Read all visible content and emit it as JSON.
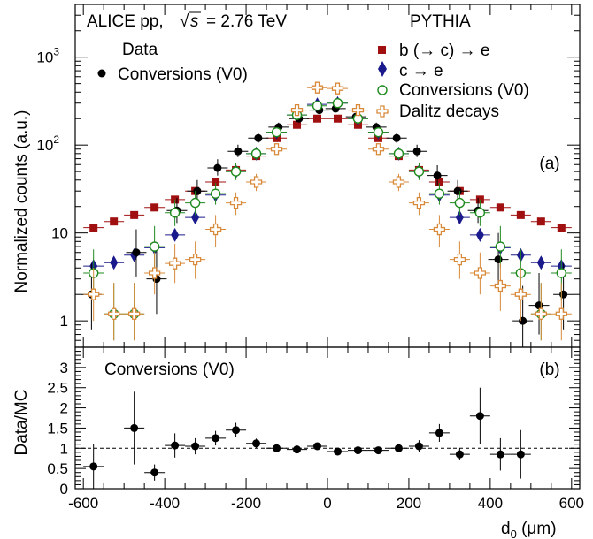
{
  "header": {
    "experiment": "ALICE pp,",
    "energy_sqrt": "s",
    "energy_value": "= 2.76 TeV"
  },
  "legend_data": {
    "title": "Data",
    "entries": [
      {
        "label": "Conversions (V0)",
        "marker": "filled-circle",
        "color": "#000000"
      }
    ]
  },
  "legend_mc": {
    "title": "PYTHIA",
    "entries": [
      {
        "label": "b (→ c) → e",
        "marker": "square",
        "color": "#a01010"
      },
      {
        "label": "c → e",
        "marker": "diamond",
        "color": "#1a1a8c"
      },
      {
        "label": "Conversions (V0)",
        "marker": "open-circle",
        "color": "#1e8a1e"
      },
      {
        "label": "Dalitz decays",
        "marker": "open-cross",
        "color": "#d88a3a"
      }
    ]
  },
  "panel_labels": {
    "top": "(a)",
    "bottom": "(b)"
  },
  "bottom_title": "Conversions (V0)",
  "chart_data": [
    {
      "type": "scatter",
      "panel": "top",
      "ylabel": "Normalized counts (a.u.)",
      "xlim": [
        -620,
        620
      ],
      "ylim_log10": [
        -0.3,
        3.6
      ],
      "yscale": "log",
      "x_ticks": [
        -600,
        -400,
        -200,
        0,
        200,
        400,
        600
      ],
      "y_tick_labels": [
        {
          "value": 1,
          "label": "1"
        },
        {
          "value": 10,
          "label": "10"
        },
        {
          "value": 100,
          "label": "10",
          "exp": "2"
        },
        {
          "value": 1000,
          "label": "10",
          "exp": "3"
        }
      ],
      "series": [
        {
          "name": "b (→ c) → e",
          "marker": "square",
          "color": "#a01010",
          "x": [
            -575,
            -525,
            -475,
            -425,
            -375,
            -325,
            -275,
            -225,
            -175,
            -125,
            -75,
            -25,
            25,
            75,
            125,
            175,
            225,
            275,
            325,
            375,
            425,
            475,
            525,
            575
          ],
          "y": [
            11.5,
            13.5,
            16,
            19.5,
            24,
            30,
            38,
            52,
            75,
            120,
            170,
            200,
            200,
            170,
            120,
            75,
            52,
            38,
            30,
            24,
            19.5,
            16,
            13.5,
            11.5
          ]
        },
        {
          "name": "c → e",
          "marker": "diamond",
          "color": "#1a1a8c",
          "x": [
            -575,
            -525,
            -475,
            -425,
            -375,
            -325,
            -275,
            -225,
            -175,
            -125,
            -75,
            -25,
            25,
            75,
            125,
            175,
            225,
            275,
            325,
            375,
            425,
            475,
            525,
            575
          ],
          "y": [
            4.2,
            4.6,
            5.6,
            6.8,
            9.5,
            15,
            27,
            50,
            80,
            140,
            220,
            290,
            300,
            200,
            140,
            80,
            50,
            27,
            15,
            9.5,
            6.8,
            5.6,
            4.6,
            4.2
          ]
        },
        {
          "name": "Data Conversions (V0)",
          "marker": "filled-circle",
          "color": "#000000",
          "x": [
            -580,
            -470,
            -420,
            -370,
            -320,
            -270,
            -220,
            -170,
            -120,
            -70,
            -20,
            20,
            70,
            120,
            170,
            220,
            270,
            320,
            370,
            420,
            480,
            520,
            580
          ],
          "y": [
            2,
            6,
            3,
            18,
            30,
            55,
            85,
            120,
            160,
            200,
            250,
            260,
            210,
            160,
            120,
            85,
            45,
            30,
            18,
            5,
            1,
            1.5,
            2
          ],
          "yerr_low": [
            1.2,
            2.8,
            1.8,
            5,
            7,
            10,
            12,
            14,
            16,
            16,
            16,
            16,
            16,
            16,
            14,
            12,
            10,
            7,
            5,
            2.5,
            0.6,
            0.8,
            1.2
          ],
          "yerr_high": [
            2.5,
            5,
            4,
            7,
            10,
            14,
            16,
            18,
            20,
            20,
            20,
            20,
            20,
            20,
            18,
            16,
            14,
            10,
            7,
            5,
            1.5,
            2,
            2.5
          ]
        },
        {
          "name": "Conversions (V0)",
          "marker": "open-circle",
          "color": "#1e8a1e",
          "x": [
            -575,
            -525,
            -475,
            -425,
            -375,
            -325,
            -275,
            -225,
            -175,
            -125,
            -75,
            -25,
            25,
            75,
            125,
            175,
            225,
            275,
            325,
            375,
            425,
            475,
            525,
            575
          ],
          "y": [
            3.5,
            1.2,
            1.2,
            7,
            17,
            22,
            28,
            50,
            80,
            140,
            220,
            280,
            300,
            200,
            140,
            80,
            50,
            28,
            22,
            17,
            7,
            3.5,
            1.2,
            3.5
          ],
          "yerr_low": [
            1.8,
            0.6,
            0.6,
            3,
            5,
            6,
            7,
            10,
            12,
            14,
            16,
            16,
            16,
            16,
            14,
            12,
            10,
            7,
            6,
            5,
            3,
            1.8,
            0.6,
            1.8
          ],
          "yerr_high": [
            3,
            1.5,
            1.5,
            5,
            7,
            8,
            9,
            12,
            14,
            16,
            18,
            18,
            18,
            18,
            16,
            14,
            12,
            9,
            8,
            7,
            5,
            3,
            1.5,
            3
          ]
        },
        {
          "name": "Dalitz decays",
          "marker": "open-cross",
          "color": "#d88a3a",
          "x": [
            -575,
            -525,
            -475,
            -425,
            -375,
            -325,
            -275,
            -225,
            -175,
            -125,
            -75,
            -25,
            25,
            75,
            125,
            175,
            225,
            275,
            325,
            375,
            425,
            475,
            525,
            575
          ],
          "y": [
            2,
            1.2,
            1.2,
            3.5,
            4.5,
            5,
            11,
            22,
            38,
            90,
            250,
            450,
            440,
            250,
            90,
            38,
            22,
            11,
            5,
            3.5,
            2.5,
            2,
            1.2,
            1.2
          ],
          "yerr_low": [
            1,
            0.6,
            0.6,
            1.5,
            1.8,
            2,
            4,
            6,
            8,
            12,
            20,
            25,
            25,
            20,
            12,
            8,
            6,
            4,
            2,
            1.5,
            1.2,
            1,
            0.6,
            0.6
          ],
          "yerr_high": [
            2,
            1.5,
            1.5,
            2.5,
            3,
            3,
            5,
            7,
            9,
            14,
            22,
            28,
            28,
            22,
            14,
            9,
            7,
            5,
            3,
            2.5,
            2,
            2,
            1.5,
            1.5
          ]
        }
      ]
    },
    {
      "type": "scatter",
      "panel": "bottom",
      "xlabel": "d0 (μm)",
      "ylabel": "Data/MC",
      "xlim": [
        -620,
        620
      ],
      "ylim": [
        0,
        3.5
      ],
      "reference_line": 1,
      "x_ticks": [
        -600,
        -400,
        -200,
        0,
        200,
        400,
        600
      ],
      "y_ticks": [
        0,
        0.5,
        1,
        1.5,
        2,
        2.5,
        3
      ],
      "series": [
        {
          "name": "Data/MC",
          "marker": "filled-circle",
          "color": "#000000",
          "x": [
            -575,
            -475,
            -425,
            -375,
            -325,
            -275,
            -225,
            -175,
            -125,
            -75,
            -25,
            25,
            75,
            125,
            175,
            225,
            275,
            325,
            375,
            425,
            475
          ],
          "y": [
            0.55,
            1.5,
            0.4,
            1.07,
            1.05,
            1.25,
            1.45,
            1.12,
            1.0,
            0.97,
            1.05,
            0.92,
            0.95,
            0.95,
            1.0,
            1.05,
            1.38,
            0.85,
            1.8,
            0.85,
            0.85
          ],
          "yerr": [
            0.55,
            0.9,
            0.2,
            0.3,
            0.2,
            0.18,
            0.18,
            0.12,
            0.06,
            0.05,
            0.05,
            0.05,
            0.05,
            0.07,
            0.1,
            0.15,
            0.22,
            0.15,
            0.7,
            0.4,
            0.6
          ]
        }
      ]
    }
  ]
}
